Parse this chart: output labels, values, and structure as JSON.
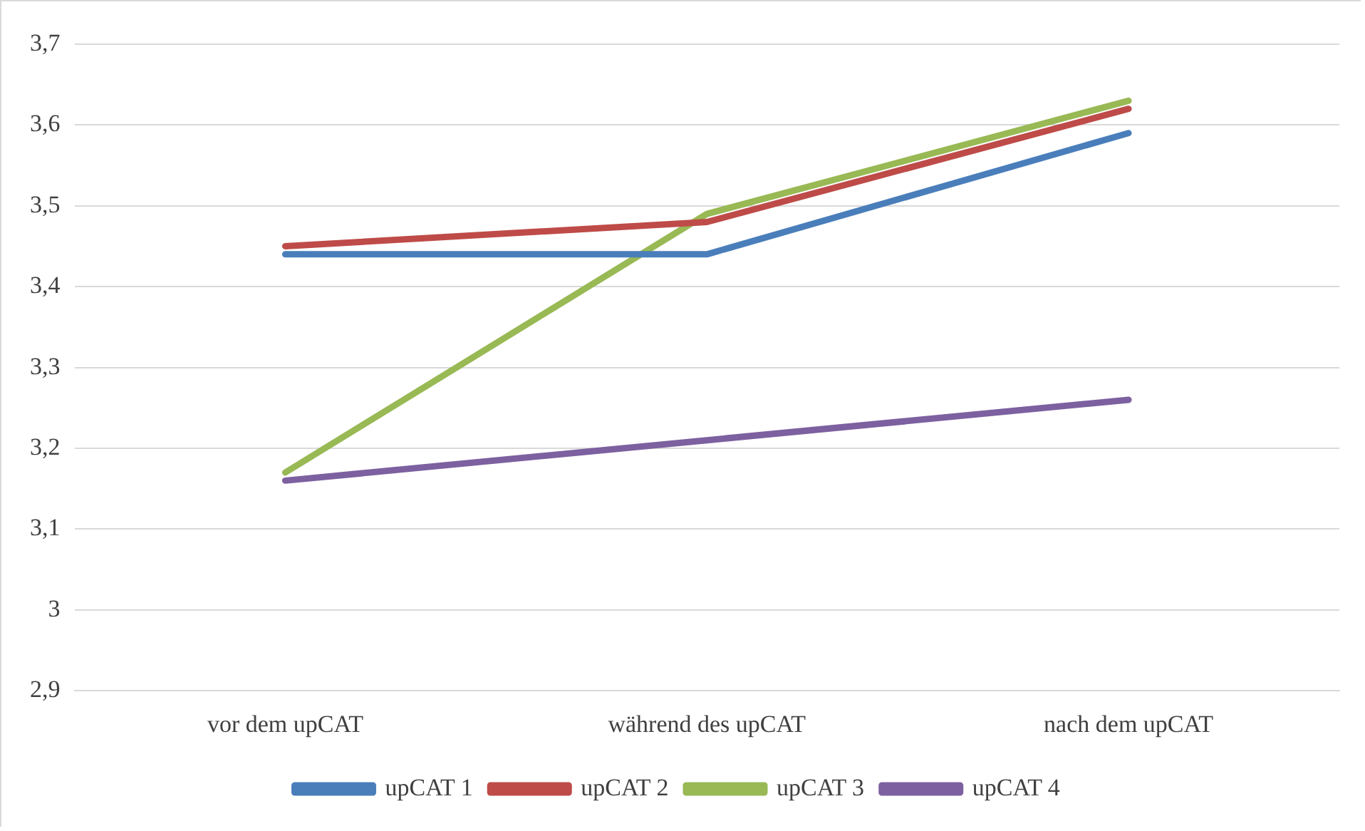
{
  "chart_data": {
    "type": "line",
    "categories": [
      "vor dem upCAT",
      "während des upCAT",
      "nach dem upCAT"
    ],
    "series": [
      {
        "name": "upCAT 1",
        "color": "#4a7ebb",
        "values": [
          3.44,
          3.44,
          3.59
        ]
      },
      {
        "name": "upCAT 2",
        "color": "#be4b48",
        "values": [
          3.45,
          3.48,
          3.62
        ]
      },
      {
        "name": "upCAT 3",
        "color": "#98b954",
        "values": [
          3.17,
          3.49,
          3.63
        ]
      },
      {
        "name": "upCAT 4",
        "color": "#7d60a0",
        "values": [
          3.16,
          3.21,
          3.26
        ]
      }
    ],
    "ylim": [
      2.9,
      3.7
    ],
    "yticks": [
      {
        "value": 2.9,
        "label": "2,9"
      },
      3,
      {
        "value": 3.1,
        "label": "3,1"
      },
      {
        "value": 3.2,
        "label": "3,2"
      },
      {
        "value": 3.3,
        "label": "3,3"
      },
      {
        "value": 3.4,
        "label": "3,4"
      },
      {
        "value": 3.5,
        "label": "3,5"
      },
      {
        "value": 3.6,
        "label": "3,6"
      },
      {
        "value": 3.7,
        "label": "3,7"
      }
    ],
    "grid": "y",
    "legend": "bottom",
    "marker": "none",
    "line_style": "solid"
  }
}
